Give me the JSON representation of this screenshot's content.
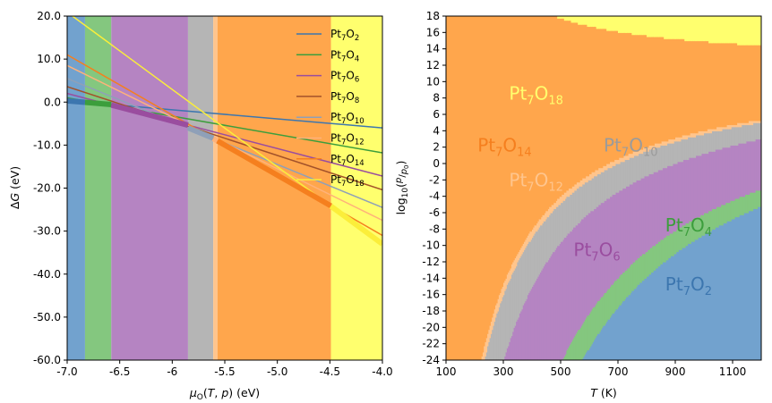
{
  "chart_data": [
    {
      "type": "line",
      "xlabel": "μO(T, p) (eV)",
      "ylabel": "ΔG (eV)",
      "xlim": [
        -7.0,
        -4.0
      ],
      "ylim": [
        -60.0,
        20.0
      ],
      "xticks": [
        -7.0,
        -6.5,
        -6.0,
        -5.5,
        -5.0,
        -4.5,
        -4.0
      ],
      "xtick_labels": [
        "-7.0",
        "-6.5",
        "-6",
        "-5.5",
        "-5.0",
        "-4.5",
        "-4.0"
      ],
      "yticks": [
        20,
        10,
        0,
        -10,
        -20,
        -30,
        -40,
        -50,
        -60
      ],
      "ytick_labels": [
        "20.0",
        "10.0",
        "0.0",
        "-10.0",
        "-20.0",
        "-30.0",
        "-40.0",
        "-50.0",
        "-60.0"
      ],
      "legend_position": "top-right",
      "bands": [
        {
          "name": "Pt7O2",
          "x0": -7.0,
          "x1": -6.83,
          "color": "#72a2ce"
        },
        {
          "name": "Pt7O4",
          "x0": -6.83,
          "x1": -6.58,
          "color": "#84c77f"
        },
        {
          "name": "Pt7O6",
          "x0": -6.58,
          "x1": -5.85,
          "color": "#b584c2"
        },
        {
          "name": "Pt7O10",
          "x0": -5.85,
          "x1": -5.61,
          "color": "#b5b5b5"
        },
        {
          "name": "Pt7O12",
          "x0": -5.61,
          "x1": -5.57,
          "color": "#ffc58d"
        },
        {
          "name": "Pt7O14",
          "x0": -5.57,
          "x1": -4.49,
          "color": "#ffa64c"
        },
        {
          "name": "Pt7O18",
          "x0": -4.49,
          "x1": -4.0,
          "color": "#ffff6e"
        }
      ],
      "series": [
        {
          "name_base": "Pt",
          "sub1": "7",
          "mid": "O",
          "sub2": "2",
          "color": "#3c76af",
          "points": [
            [
              -7.0,
              0.3
            ],
            [
              -4.0,
              -6.0
            ]
          ]
        },
        {
          "name_base": "Pt",
          "sub1": "7",
          "mid": "O",
          "sub2": "4",
          "color": "#3c9e3c",
          "points": [
            [
              -7.0,
              1.0
            ],
            [
              -4.0,
              -11.8
            ]
          ]
        },
        {
          "name_base": "Pt",
          "sub1": "7",
          "mid": "O",
          "sub2": "6",
          "color": "#9a4d9f",
          "points": [
            [
              -7.0,
              2.0
            ],
            [
              -4.0,
              -17.2
            ]
          ]
        },
        {
          "name_base": "Pt",
          "sub1": "7",
          "mid": "O",
          "sub2": "8",
          "color": "#a3522a",
          "points": [
            [
              -7.0,
              3.6
            ],
            [
              -4.0,
              -20.4
            ]
          ]
        },
        {
          "name_base": "Pt",
          "sub1": "7",
          "mid": "O",
          "sub2": "10",
          "color": "#8fa0b8",
          "points": [
            [
              -7.0,
              5.5
            ],
            [
              -4.0,
              -24.5
            ]
          ]
        },
        {
          "name_base": "Pt",
          "sub1": "7",
          "mid": "O",
          "sub2": "12",
          "color": "#ffb27a",
          "points": [
            [
              -7.0,
              8.5
            ],
            [
              -4.0,
              -27.5
            ]
          ]
        },
        {
          "name_base": "Pt",
          "sub1": "7",
          "mid": "O",
          "sub2": "14",
          "color": "#f57f1e",
          "points": [
            [
              -7.0,
              11.0
            ],
            [
              -4.0,
              -31.0
            ]
          ]
        },
        {
          "name_base": "Pt",
          "sub1": "7",
          "mid": "O",
          "sub2": "18",
          "color": "#fbee3a",
          "points": [
            [
              -6.95,
              20.0
            ],
            [
              -4.0,
              -33.0
            ]
          ]
        }
      ],
      "hull_segments": [
        {
          "x0": -7.0,
          "x1": -6.83,
          "color": "#3c76af"
        },
        {
          "x0": -6.83,
          "x1": -6.58,
          "color": "#3c9e3c"
        },
        {
          "x0": -6.58,
          "x1": -5.85,
          "color": "#9a4d9f"
        },
        {
          "x0": -5.85,
          "x1": -5.61,
          "color": "#8fa0b8"
        },
        {
          "x0": -5.61,
          "x1": -5.57,
          "color": "#ffb27a"
        },
        {
          "x0": -5.57,
          "x1": -4.49,
          "color": "#f57f1e"
        },
        {
          "x0": -4.49,
          "x1": -4.0,
          "color": "#fbee3a"
        }
      ]
    },
    {
      "type": "area",
      "xlabel": "T (K)",
      "ylabel": "log10(p/p0)",
      "xlim": [
        100,
        1200
      ],
      "ylim": [
        -24,
        18
      ],
      "xticks": [
        100,
        300,
        500,
        700,
        900,
        1100
      ],
      "yticks": [
        18,
        16,
        14,
        12,
        10,
        8,
        6,
        4,
        2,
        0,
        -2,
        -4,
        -6,
        -8,
        -10,
        -12,
        -14,
        -16,
        -18,
        -20,
        -22,
        -24
      ],
      "colors": {
        "Pt7O18": "#ffff6e",
        "Pt7O14": "#ffa64c",
        "Pt7O12": "#ffc58d",
        "Pt7O10": "#b5b5b5",
        "Pt7O6": "#b584c2",
        "Pt7O4": "#84c77f",
        "Pt7O2": "#72a2ce"
      },
      "boundaries_muO": {
        "Pt7O18_Pt7O14": -4.49,
        "Pt7O14_Pt7O12": -5.57,
        "Pt7O12_Pt7O10": -5.61,
        "Pt7O10_Pt7O6": -5.85,
        "Pt7O6_Pt7O4": -6.58,
        "Pt7O4_Pt7O2": -6.83
      },
      "region_labels": [
        {
          "base": "Pt",
          "sub1": "7",
          "mid": "O",
          "sub2": "18",
          "T": 320,
          "logp": 7.8,
          "color": "#ffff6e"
        },
        {
          "base": "Pt",
          "sub1": "7",
          "mid": "O",
          "sub2": "14",
          "T": 210,
          "logp": 1.5,
          "color": "#f57f1e"
        },
        {
          "base": "Pt",
          "sub1": "7",
          "mid": "O",
          "sub2": "10",
          "T": 650,
          "logp": 1.5,
          "color": "#9b9b9b"
        },
        {
          "base": "Pt",
          "sub1": "7",
          "mid": "O",
          "sub2": "12",
          "T": 320,
          "logp": -2.8,
          "color": "#ffc58d"
        },
        {
          "base": "Pt",
          "sub1": "7",
          "mid": "O",
          "sub2": "4",
          "T": 865,
          "logp": -8.3,
          "color": "#3c9e3c"
        },
        {
          "base": "Pt",
          "sub1": "7",
          "mid": "O",
          "sub2": "6",
          "T": 545,
          "logp": -11.3,
          "color": "#9a4d9f"
        },
        {
          "base": "Pt",
          "sub1": "7",
          "mid": "O",
          "sub2": "2",
          "T": 865,
          "logp": -15.5,
          "color": "#3c76af"
        }
      ]
    }
  ]
}
